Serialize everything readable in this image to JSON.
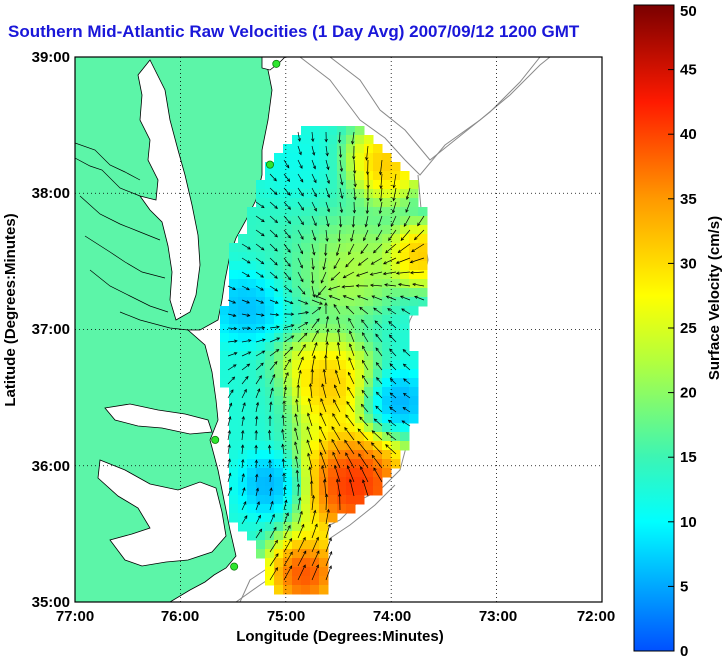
{
  "title": "Southern Mid-Atlantic Raw Velocities (1 Day Avg) 2007/09/12 1200 GMT",
  "map": {
    "xlabel": "Longitude (Degrees:Minutes)",
    "ylabel": "Latitude (Degrees:Minutes)",
    "x_ticks": [
      "77:00",
      "76:00",
      "75:00",
      "74:00",
      "73:00",
      "72:00"
    ],
    "y_ticks": [
      "39:00",
      "38:00",
      "37:00",
      "36:00",
      "35:00"
    ],
    "xlim": [
      -77,
      -72
    ],
    "ylim": [
      35,
      39
    ],
    "land_color": "#5cf5a8",
    "grid": "dotted"
  },
  "colorbar": {
    "label": "Surface Velocity (cm/s)",
    "range": [
      0,
      50
    ],
    "ticks": [
      "0",
      "5",
      "10",
      "15",
      "20",
      "25",
      "30",
      "35",
      "40",
      "45",
      "50"
    ]
  },
  "stations": [
    {
      "lon": -75.09,
      "lat": 38.95
    },
    {
      "lon": -75.15,
      "lat": 38.21
    },
    {
      "lon": -75.67,
      "lat": 36.19
    },
    {
      "lon": -75.49,
      "lat": 35.26
    }
  ]
}
